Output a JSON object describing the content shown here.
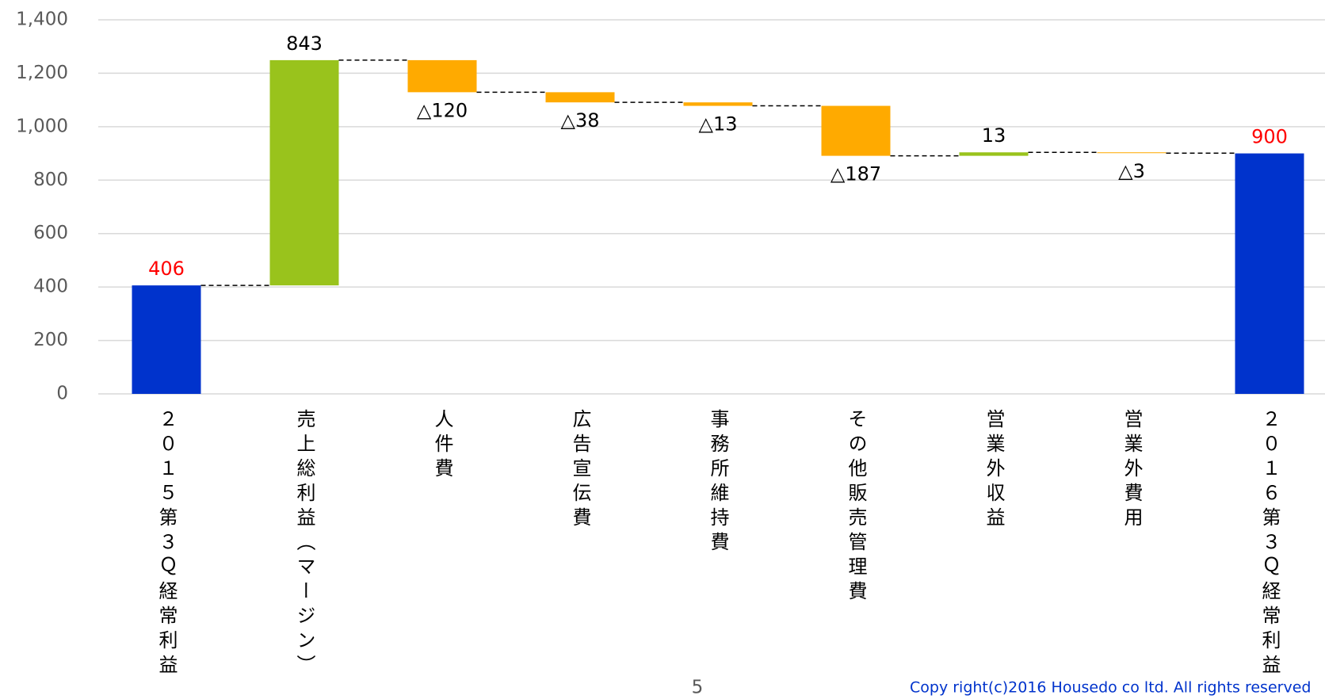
{
  "chart_data": {
    "type": "waterfall",
    "categories": [
      "２０１５第３Ｑ経常利益",
      "売上総利益（マージン）",
      "人件費",
      "広告宣伝費",
      "事務所維持費",
      "その他販売管理費",
      "営業外収益",
      "営業外費用",
      "２０１６第３Ｑ経常利益"
    ],
    "measure": [
      "total",
      "relative",
      "relative",
      "relative",
      "relative",
      "relative",
      "relative",
      "relative",
      "total"
    ],
    "values": [
      406,
      843,
      -120,
      -38,
      -13,
      -187,
      13,
      -3,
      900
    ],
    "value_labels": [
      "406",
      "843",
      "△120",
      "△38",
      "△13",
      "△187",
      "13",
      "△3",
      "900"
    ],
    "colors": [
      "#0033cc",
      "#99c31c",
      "#ffaa00",
      "#ffaa00",
      "#ffaa00",
      "#ffaa00",
      "#99c31c",
      "#ffaa00",
      "#0033cc"
    ],
    "total_label_color": "#ff0000",
    "ylim": [
      0,
      1400
    ],
    "yticks": [
      0,
      200,
      400,
      600,
      800,
      {
        "value": 1000,
        "label": "1,000"
      },
      {
        "value": 1200,
        "label": "1,200"
      },
      {
        "value": 1400,
        "label": "1,400"
      }
    ],
    "grid": true,
    "page_number": "5",
    "copyright": "Copy right(c)2016 Housedo co ltd. All rights reserved"
  }
}
